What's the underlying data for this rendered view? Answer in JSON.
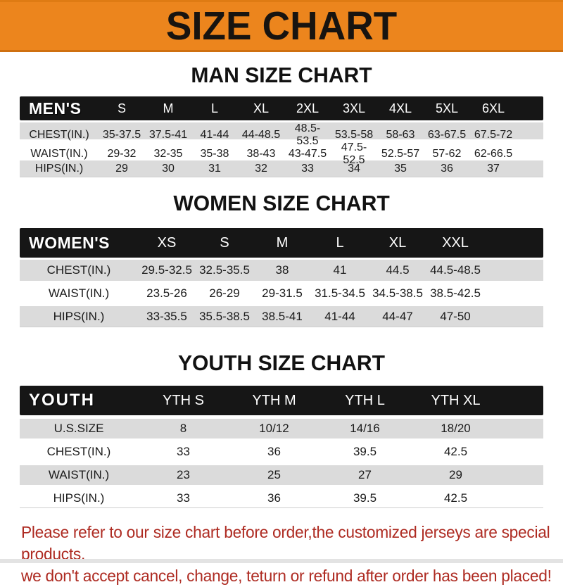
{
  "banner": {
    "title": "SIZE CHART",
    "bg_color": "#EC851D",
    "text_color": "#181410"
  },
  "men": {
    "heading": "MAN SIZE CHART",
    "label": "MEN'S",
    "sizes": [
      "S",
      "M",
      "L",
      "XL",
      "2XL",
      "3XL",
      "4XL",
      "5XL",
      "6XL"
    ],
    "rows": [
      {
        "label": "CHEST(IN.)",
        "v": [
          "35-37.5",
          "37.5-41",
          "41-44",
          "44-48.5",
          "48.5-53.5",
          "53.5-58",
          "58-63",
          "63-67.5",
          "67.5-72"
        ]
      },
      {
        "label": "WAIST(IN.)",
        "v": [
          "29-32",
          "32-35",
          "35-38",
          "38-43",
          "43-47.5",
          "47.5-52.5",
          "52.5-57",
          "57-62",
          "62-66.5"
        ]
      },
      {
        "label": "HIPS(IN.)",
        "v": [
          "29",
          "30",
          "31",
          "32",
          "33",
          "34",
          "35",
          "36",
          "37"
        ]
      }
    ]
  },
  "women": {
    "heading": "WOMEN SIZE CHART",
    "label": "WOMEN'S",
    "sizes": [
      "XS",
      "S",
      "M",
      "L",
      "XL",
      "XXL"
    ],
    "rows": [
      {
        "label": "CHEST(IN.)",
        "v": [
          "29.5-32.5",
          "32.5-35.5",
          "38",
          "41",
          "44.5",
          "44.5-48.5"
        ]
      },
      {
        "label": "WAIST(IN.)",
        "v": [
          "23.5-26",
          "26-29",
          "29-31.5",
          "31.5-34.5",
          "34.5-38.5",
          "38.5-42.5"
        ]
      },
      {
        "label": "HIPS(IN.)",
        "v": [
          "33-35.5",
          "35.5-38.5",
          "38.5-41",
          "41-44",
          "44-47",
          "47-50"
        ]
      }
    ]
  },
  "youth": {
    "heading": "YOUTH SIZE CHART",
    "label": "YOUTH",
    "sizes": [
      "YTH S",
      "YTH M",
      "YTH L",
      "YTH XL"
    ],
    "rows": [
      {
        "label": "U.S.SIZE",
        "v": [
          "8",
          "10/12",
          "14/16",
          "18/20"
        ]
      },
      {
        "label": "CHEST(IN.)",
        "v": [
          "33",
          "36",
          "39.5",
          "42.5"
        ]
      },
      {
        "label": "WAIST(IN.)",
        "v": [
          "23",
          "25",
          "27",
          "29"
        ]
      },
      {
        "label": "HIPS(IN.)",
        "v": [
          "33",
          "36",
          "39.5",
          "42.5"
        ]
      }
    ]
  },
  "footnote": {
    "line1": "Please refer to our size chart before order,the customized jerseys are special products,",
    "line2": "we don't accept cancel, change, teturn or refund after order has been placed!",
    "color": "#AE2B22"
  }
}
